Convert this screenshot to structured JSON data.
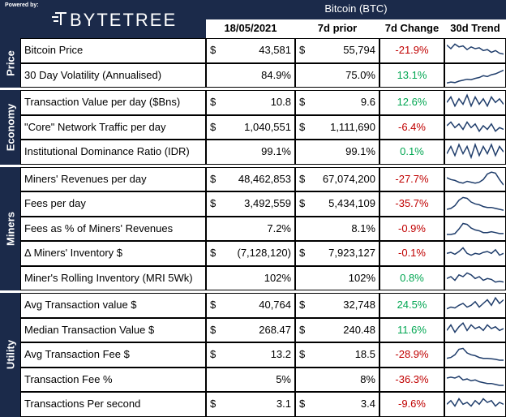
{
  "brand": {
    "powered_by": "Powered by:",
    "name": "BYTETREE"
  },
  "asset": "Bitcoin (BTC)",
  "columns": {
    "date": "18/05/2021",
    "prior": "7d prior",
    "change": "7d Change",
    "trend": "30d Trend"
  },
  "sections": [
    {
      "name": "Price",
      "rows": [
        {
          "label": "Bitcoin Price",
          "cur": "43,581",
          "prior": "55,794",
          "dollar": true,
          "chg": "-21.9%",
          "dir": "neg",
          "trend": [
            0.8,
            0.6,
            0.85,
            0.7,
            0.75,
            0.55,
            0.7,
            0.6,
            0.65,
            0.5,
            0.55,
            0.4,
            0.5,
            0.35,
            0.3
          ]
        },
        {
          "label": "30 Day Volatility (Annualised)",
          "cur": "84.9%",
          "prior": "75.0%",
          "dollar": false,
          "chg": "13.1%",
          "dir": "pos",
          "trend": [
            0.1,
            0.15,
            0.12,
            0.2,
            0.25,
            0.3,
            0.28,
            0.35,
            0.4,
            0.5,
            0.45,
            0.55,
            0.6,
            0.7,
            0.8
          ]
        }
      ]
    },
    {
      "name": "Economy",
      "rows": [
        {
          "label": "Transaction Value per day ($Bns)",
          "cur": "10.8",
          "prior": "9.6",
          "dollar": true,
          "chg": "12.6%",
          "dir": "pos",
          "trend": [
            0.5,
            0.8,
            0.3,
            0.7,
            0.4,
            0.9,
            0.3,
            0.8,
            0.4,
            0.7,
            0.3,
            0.8,
            0.5,
            0.7,
            0.4
          ]
        },
        {
          "label": "\"Core\" Network Traffic per day",
          "cur": "1,040,551",
          "prior": "1,111,690",
          "dollar": true,
          "chg": "-6.4%",
          "dir": "neg",
          "trend": [
            0.6,
            0.8,
            0.5,
            0.7,
            0.4,
            0.8,
            0.5,
            0.7,
            0.3,
            0.6,
            0.4,
            0.7,
            0.3,
            0.5,
            0.4
          ]
        },
        {
          "label": "Institutional Dominance Ratio (IDR)",
          "cur": "99.1%",
          "prior": "99.1%",
          "dollar": false,
          "chg": "0.1%",
          "dir": "pos",
          "trend": [
            0.4,
            0.8,
            0.3,
            0.9,
            0.4,
            0.8,
            0.2,
            0.9,
            0.3,
            0.8,
            0.4,
            0.9,
            0.3,
            0.8,
            0.5
          ]
        }
      ]
    },
    {
      "name": "Miners",
      "rows": [
        {
          "label": "Miners' Revenues per day",
          "cur": "48,462,853",
          "prior": "67,074,200",
          "dollar": true,
          "chg": "-27.7%",
          "dir": "neg",
          "trend": [
            0.6,
            0.5,
            0.45,
            0.35,
            0.3,
            0.4,
            0.35,
            0.3,
            0.35,
            0.5,
            0.8,
            0.9,
            0.85,
            0.5,
            0.2
          ]
        },
        {
          "label": "Fees per day",
          "cur": "3,492,559",
          "prior": "5,434,109",
          "dollar": true,
          "chg": "-35.7%",
          "dir": "neg",
          "trend": [
            0.2,
            0.25,
            0.4,
            0.7,
            0.85,
            0.8,
            0.6,
            0.5,
            0.45,
            0.35,
            0.3,
            0.3,
            0.25,
            0.2,
            0.15
          ]
        },
        {
          "label": "Fees as % of Miners' Revenues",
          "cur": "7.2%",
          "prior": "8.1%",
          "dollar": false,
          "chg": "-0.9%",
          "dir": "neg",
          "trend": [
            0.2,
            0.2,
            0.25,
            0.5,
            0.8,
            0.75,
            0.55,
            0.45,
            0.4,
            0.3,
            0.3,
            0.35,
            0.3,
            0.25,
            0.25
          ]
        },
        {
          "label": "Δ Miners' Inventory $",
          "cur": "(7,128,120)",
          "prior": "7,923,127",
          "dollar": true,
          "chg": "-0.1%",
          "dir": "neg",
          "trend": [
            0.5,
            0.55,
            0.45,
            0.6,
            0.8,
            0.5,
            0.4,
            0.5,
            0.45,
            0.55,
            0.6,
            0.5,
            0.7,
            0.4,
            0.5
          ]
        },
        {
          "label": "Miner's Rolling Inventory (MRI 5Wk)",
          "cur": "102%",
          "prior": "102%",
          "dollar": false,
          "chg": "0.8%",
          "dir": "pos",
          "trend": [
            0.5,
            0.6,
            0.4,
            0.7,
            0.6,
            0.8,
            0.7,
            0.5,
            0.6,
            0.4,
            0.5,
            0.45,
            0.3,
            0.35,
            0.3
          ]
        }
      ]
    },
    {
      "name": "Utility",
      "rows": [
        {
          "label": "Avg Transaction value $",
          "cur": "40,764",
          "prior": "32,748",
          "dollar": true,
          "chg": "24.5%",
          "dir": "pos",
          "trend": [
            0.3,
            0.4,
            0.35,
            0.5,
            0.6,
            0.4,
            0.5,
            0.7,
            0.4,
            0.6,
            0.8,
            0.5,
            0.9,
            0.6,
            0.8
          ]
        },
        {
          "label": "Median Transaction Value $",
          "cur": "268.47",
          "prior": "240.48",
          "dollar": true,
          "chg": "11.6%",
          "dir": "pos",
          "trend": [
            0.5,
            0.8,
            0.4,
            0.7,
            0.9,
            0.5,
            0.8,
            0.6,
            0.7,
            0.5,
            0.8,
            0.6,
            0.7,
            0.5,
            0.6
          ]
        },
        {
          "label": "Avg Transaction Fee $",
          "cur": "13.2",
          "prior": "18.5",
          "dollar": true,
          "chg": "-28.9%",
          "dir": "neg",
          "trend": [
            0.3,
            0.35,
            0.5,
            0.8,
            0.85,
            0.6,
            0.5,
            0.45,
            0.35,
            0.3,
            0.3,
            0.28,
            0.25,
            0.2,
            0.2
          ]
        },
        {
          "label": "Transaction Fee %",
          "cur": "5%",
          "prior": "8%",
          "dollar": false,
          "chg": "-36.3%",
          "dir": "neg",
          "trend": [
            0.6,
            0.65,
            0.6,
            0.7,
            0.5,
            0.55,
            0.45,
            0.5,
            0.4,
            0.35,
            0.3,
            0.3,
            0.25,
            0.2,
            0.2
          ]
        },
        {
          "label": "Transactions Per second",
          "cur": "3.1",
          "prior": "3.4",
          "dollar": true,
          "chg": "-9.6%",
          "dir": "neg",
          "trend": [
            0.5,
            0.7,
            0.4,
            0.8,
            0.5,
            0.6,
            0.4,
            0.7,
            0.5,
            0.8,
            0.6,
            0.7,
            0.4,
            0.6,
            0.5
          ]
        }
      ]
    }
  ]
}
